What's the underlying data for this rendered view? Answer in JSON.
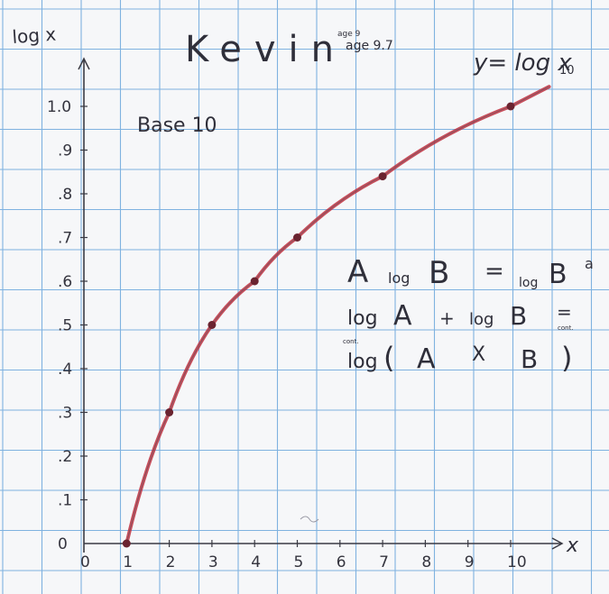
{
  "page": {
    "ylabel": "log x",
    "author": "Kevin",
    "age_note_small": "age 9",
    "age_note": "age 9.7",
    "base_note": "Base 10",
    "equation": "y= log x",
    "equation_base": "10",
    "rule1": {
      "a": "A",
      "log1": "log",
      "b": "B",
      "eq": "=",
      "log2": "log",
      "rhs": "B",
      "exp": "a"
    },
    "rule2": {
      "log1": "log",
      "a": "A",
      "plus": "+",
      "log2": "log",
      "b": "B",
      "eq": "=",
      "note": "cont."
    },
    "rule3": {
      "note": "cont.",
      "log": "log",
      "open": "(",
      "a": "A",
      "times": "X",
      "b": "B",
      "close": ")"
    }
  },
  "chart_data": {
    "type": "line",
    "title": "",
    "xlabel": "x",
    "ylabel": "log x",
    "x_ticks": [
      "0",
      "1",
      "2",
      "3",
      "4",
      "5",
      "6",
      "7",
      "8",
      "9",
      "10"
    ],
    "y_ticks": [
      "0",
      ".1",
      ".2",
      ".3",
      ".4",
      ".5",
      ".6",
      ".7",
      ".8",
      ".9",
      "1.0"
    ],
    "xlim": [
      0,
      10.9
    ],
    "ylim": [
      0,
      1.1
    ],
    "grid": true,
    "series": [
      {
        "x": [
          1,
          2,
          3,
          4,
          5,
          7,
          10
        ],
        "y": [
          0,
          0.3,
          0.5,
          0.6,
          0.7,
          0.84,
          1.0
        ],
        "color": "#c0303f"
      }
    ]
  },
  "colors": {
    "grid": "#7fb2e0",
    "pencil": "#3a3a44",
    "curve": "#c0303f",
    "point": "#6a2330"
  }
}
